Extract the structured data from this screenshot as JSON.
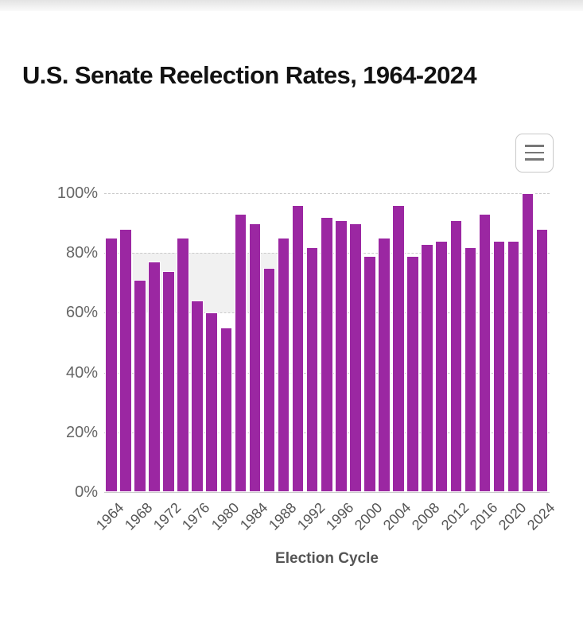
{
  "header": {
    "title": "U.S. Senate Reelection Rates, 1964-2024"
  },
  "toolbar": {
    "menu_icon": "hamburger-icon"
  },
  "colors": {
    "bar": "#9B27A2",
    "bar_border": "#ffffff",
    "gridline": "#cacaca",
    "axis_label": "#666666",
    "band": "#f1f1f1",
    "accent_red": "#9D1D28",
    "title_text": "#121212"
  },
  "chart_data": {
    "type": "bar",
    "title": "U.S. Senate Reelection Rates, 1964-2024",
    "xlabel": "Election Cycle",
    "ylabel": "",
    "categories": [
      1964,
      1966,
      1968,
      1970,
      1972,
      1974,
      1976,
      1978,
      1980,
      1982,
      1984,
      1986,
      1988,
      1990,
      1992,
      1994,
      1996,
      1998,
      2000,
      2002,
      2004,
      2006,
      2008,
      2010,
      2012,
      2014,
      2016,
      2018,
      2020,
      2022,
      2024
    ],
    "values": [
      85,
      88,
      71,
      77,
      74,
      85,
      64,
      60,
      55,
      93,
      90,
      75,
      85,
      96,
      82,
      92,
      91,
      90,
      79,
      85,
      96,
      79,
      83,
      84,
      91,
      82,
      93,
      84,
      84,
      100,
      88
    ],
    "ylim": [
      0,
      100
    ],
    "yticks": [
      0,
      20,
      40,
      60,
      80,
      100
    ],
    "ytick_suffix": "%",
    "x_tick_labels": [
      "1964",
      "1968",
      "1972",
      "1976",
      "1980",
      "1984",
      "1988",
      "1992",
      "1996",
      "2000",
      "2004",
      "2008",
      "2012",
      "2016",
      "2020",
      "2024"
    ],
    "grid": "horizontal-dashed",
    "legend": "none",
    "highlight_band": {
      "x_start_year": 1968,
      "x_end_year": 1986,
      "y_from": 60,
      "y_to": 80
    }
  }
}
